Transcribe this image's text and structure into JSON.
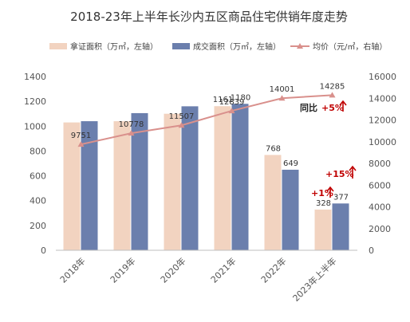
{
  "chart_data": {
    "type": "bar",
    "title": "2018-23年上半年长沙内五区商品住宅供销年度走势",
    "categories": [
      "2018年",
      "2019年",
      "2020年",
      "2021年",
      "2022年",
      "2023年上半年"
    ],
    "series": [
      {
        "name": "拿证面积（万㎡，左轴）",
        "kind": "bar",
        "axis": "left",
        "color": "#f2d3c0",
        "values": [
          1030,
          1040,
          1100,
          1161,
          768,
          328
        ]
      },
      {
        "name": "成交面积（万㎡，左轴）",
        "kind": "bar",
        "axis": "left",
        "color": "#6b7fad",
        "values": [
          1040,
          1105,
          1160,
          1180,
          649,
          377
        ]
      },
      {
        "name": "均价（元/㎡，右轴）",
        "kind": "line",
        "axis": "right",
        "color": "#d9908c",
        "values": [
          9751,
          10778,
          11507,
          12839,
          14001,
          14285
        ]
      }
    ],
    "bar_labels": [
      {
        "category": "2021年",
        "series": 0,
        "text": "1161"
      },
      {
        "category": "2021年",
        "series": 1,
        "text": "1180"
      },
      {
        "category": "2022年",
        "series": 0,
        "text": "768"
      },
      {
        "category": "2022年",
        "series": 1,
        "text": "649"
      },
      {
        "category": "2023年上半年",
        "series": 0,
        "text": "328"
      },
      {
        "category": "2023年上半年",
        "series": 1,
        "text": "377"
      }
    ],
    "price_labels": [
      "9751",
      "10778",
      "11507",
      "12839",
      "14001",
      "14285"
    ],
    "y_left": {
      "min": 0,
      "max": 1400,
      "ticks": [
        0,
        200,
        400,
        600,
        800,
        1000,
        1200,
        1400
      ]
    },
    "y_right": {
      "min": 0,
      "max": 16000,
      "ticks": [
        0,
        2000,
        4000,
        6000,
        8000,
        10000,
        12000,
        14000,
        16000
      ]
    },
    "annotations": {
      "yoy_label": "同比",
      "yoy_value": "+5%",
      "area_left_change": "+1%",
      "area_right_change": "+15%"
    },
    "grid": false,
    "legend": "top"
  }
}
